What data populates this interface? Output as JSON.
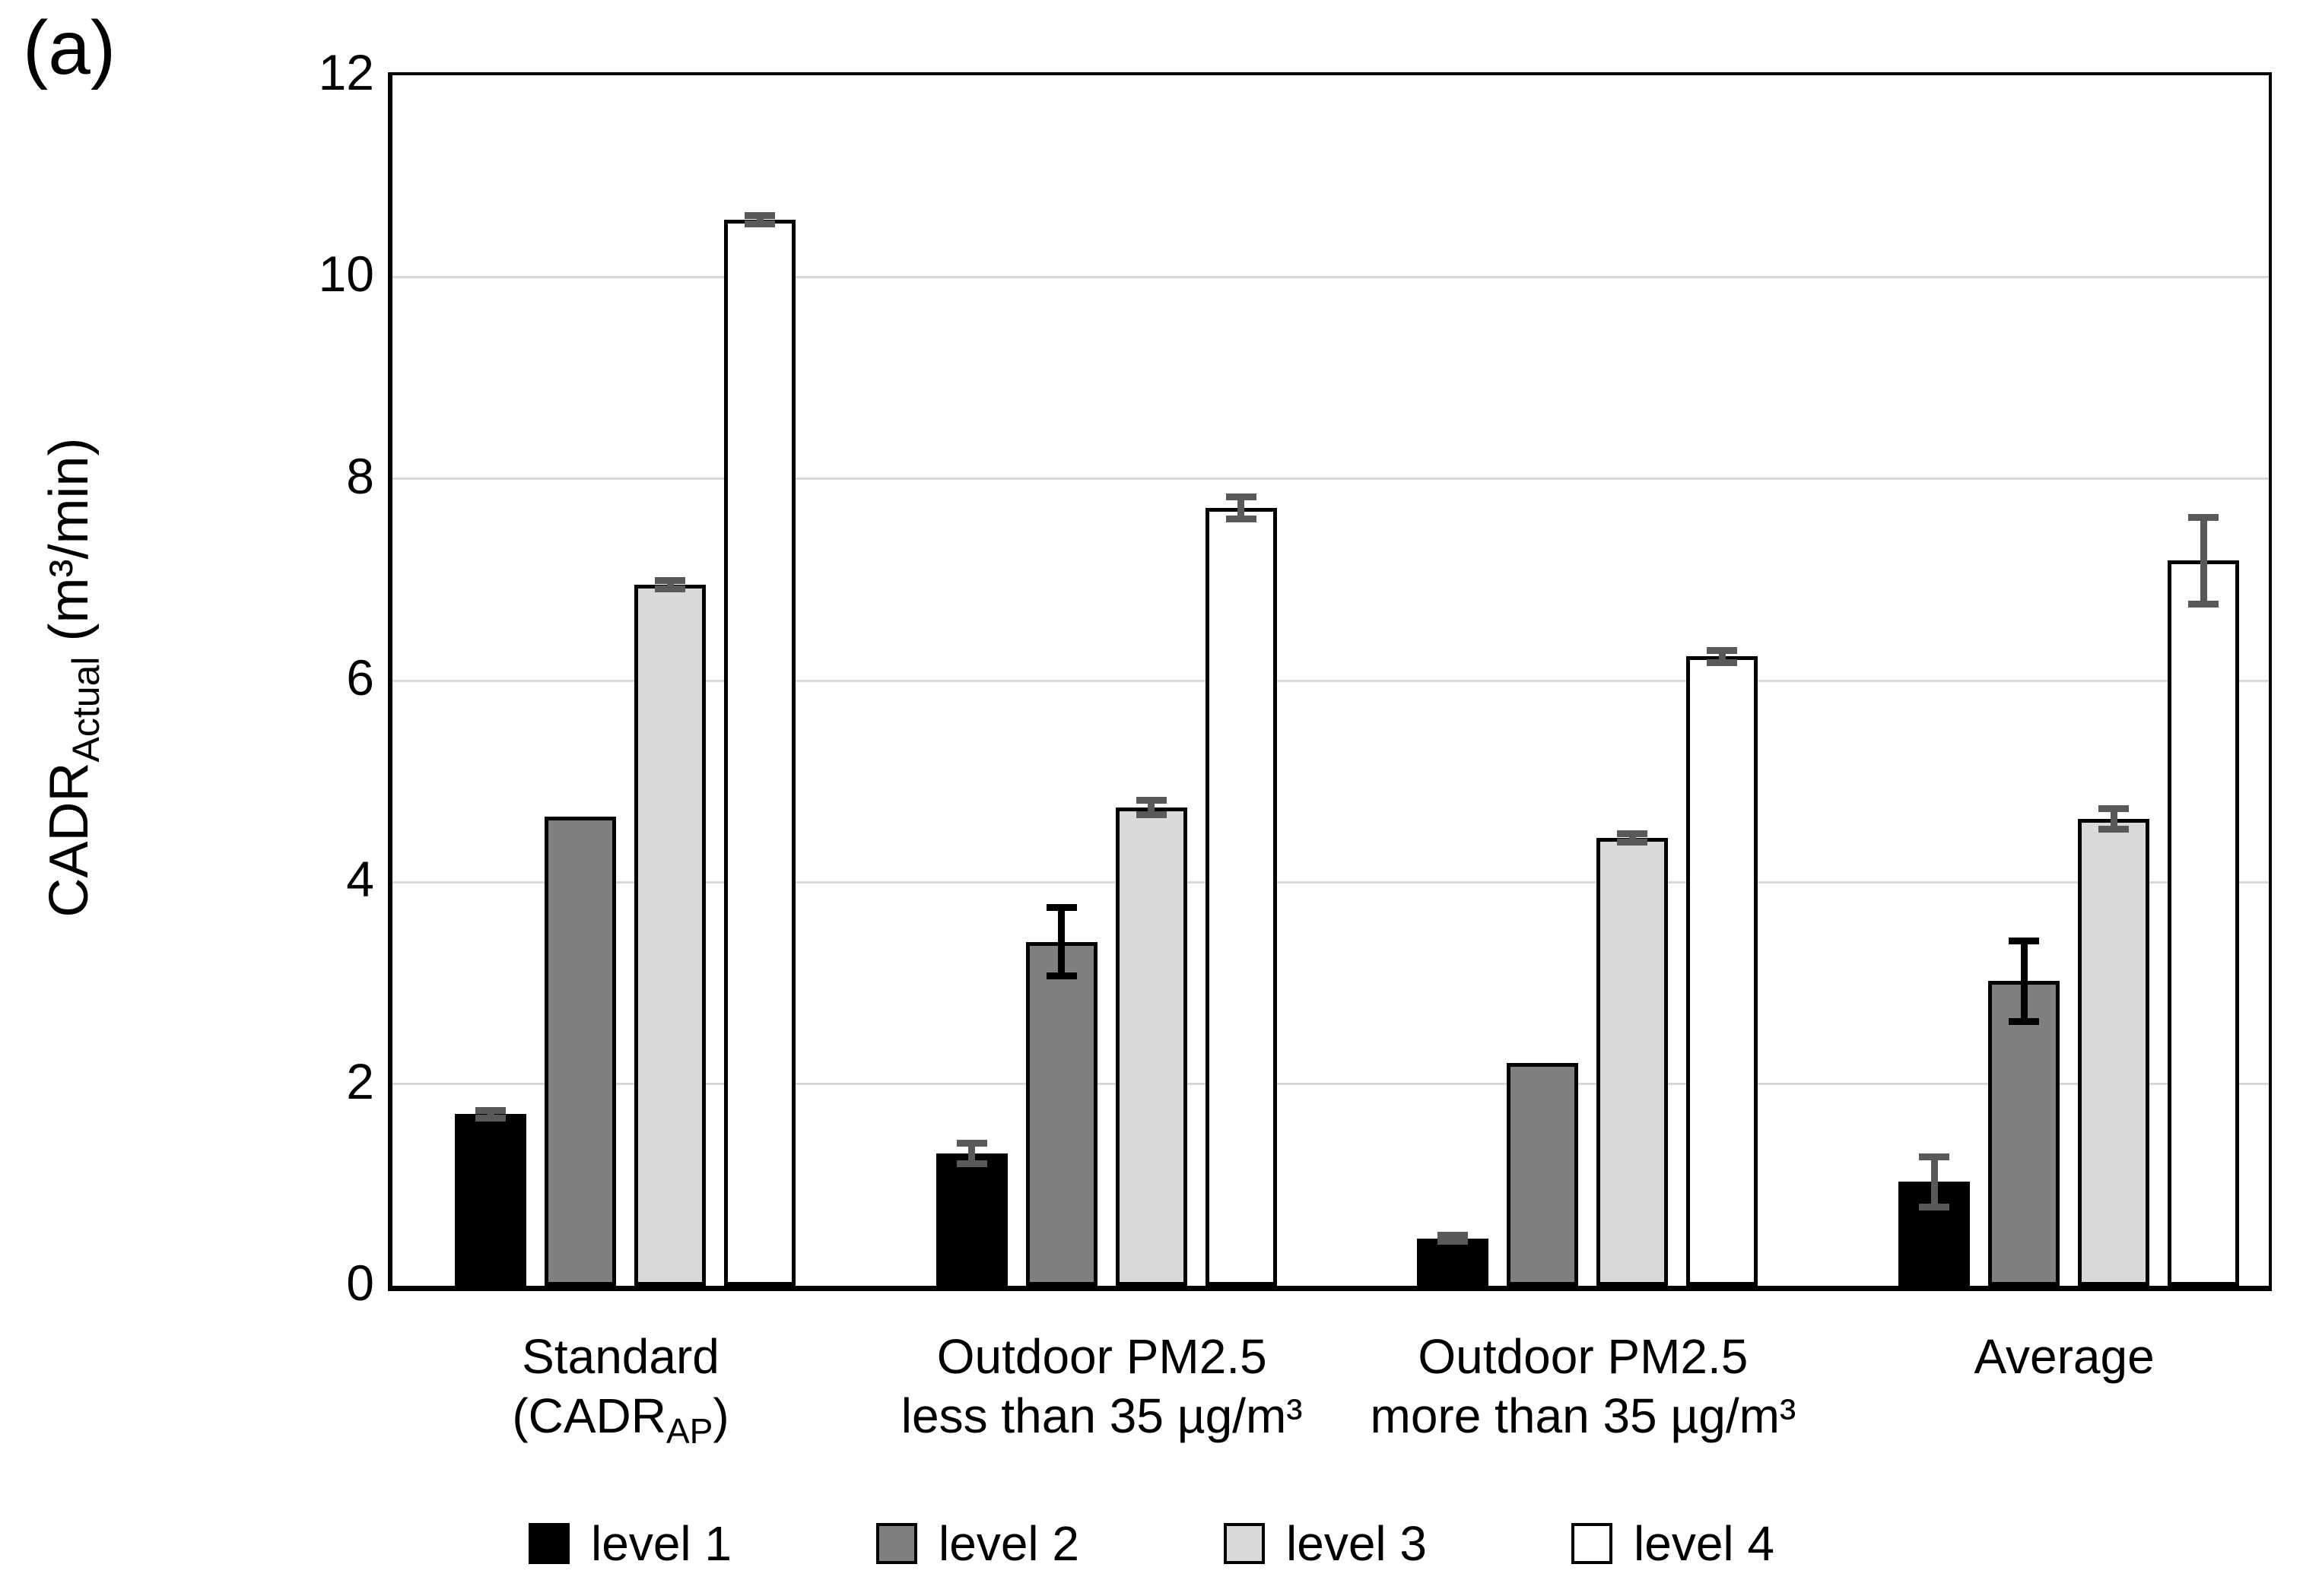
{
  "figure_label": "(a)",
  "chart_data": {
    "type": "bar",
    "title": "",
    "ylabel": {
      "main": "CADR",
      "sub": "Actual",
      "unit": " (m³/min)"
    },
    "ylim": [
      0,
      12
    ],
    "yticks": [
      0,
      2,
      4,
      6,
      8,
      10,
      12
    ],
    "grid": "horizontal gridlines every 2 units, light gray, framed plot area",
    "legend_position": "bottom",
    "gridline_color": "#d9d9d9",
    "error_bar_default_color": "#595959",
    "categories": [
      {
        "line1": "Standard",
        "line2_parts": [
          {
            "text": "(CADR"
          },
          {
            "sub": "AP"
          },
          {
            "text": ")"
          }
        ]
      },
      {
        "line1": "Outdoor PM2.5",
        "line2_parts": [
          {
            "text": "less than 35 µg/m³"
          }
        ]
      },
      {
        "line1": "Outdoor PM2.5",
        "line2_parts": [
          {
            "text": "more than 35 µg/m³"
          }
        ]
      },
      {
        "line1": "Average",
        "line2_parts": []
      }
    ],
    "series": [
      {
        "name": "level 1",
        "fill": "#000000",
        "border": "#000000",
        "error_color": "#595959",
        "values": [
          1.7,
          1.31,
          0.47,
          1.03
        ],
        "errors": [
          0.04,
          0.1,
          0.03,
          0.25
        ]
      },
      {
        "name": "level 2",
        "fill": "#7f7f7f",
        "border": "#000000",
        "error_color": "#000000",
        "values": [
          4.65,
          3.41,
          2.21,
          3.02
        ],
        "errors": [
          0,
          0.34,
          0,
          0.4
        ]
      },
      {
        "name": "level 3",
        "fill": "#d9d9d9",
        "border": "#000000",
        "error_color": "#595959",
        "values": [
          6.95,
          4.74,
          4.44,
          4.63
        ],
        "errors": [
          0.04,
          0.07,
          0.04,
          0.1
        ]
      },
      {
        "name": "level 4",
        "fill": "#ffffff",
        "border": "#000000",
        "error_color": "#595959",
        "values": [
          10.57,
          7.71,
          6.24,
          7.19
        ],
        "errors": [
          0.04,
          0.11,
          0.06,
          0.43
        ]
      }
    ]
  }
}
